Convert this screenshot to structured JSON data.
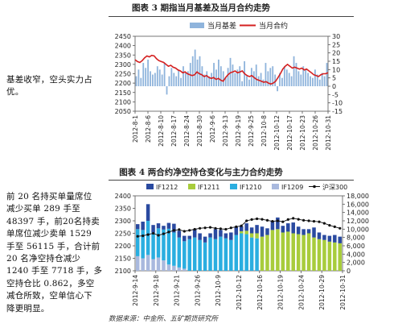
{
  "body_text": {
    "lines_top": [
      "基差收窄，空头实力占",
      "优。"
    ],
    "lines_bottom": [
      "前 20 名持买单量席位",
      "减少买单 289 手至",
      "48397 手，前20名持卖",
      "单席位减少卖单 1529",
      "手至 56115 手，合计前",
      "20 名净空持仓减少",
      "1240 手至 7718 手，多",
      "空持仓比 0.862，多空",
      "减仓所致，空单信心下",
      "降更明显。"
    ]
  },
  "source_note": "数据来源：中金所、五矿期货研究所",
  "colors": {
    "basis_bar": "#8fb4dc",
    "contract_line": "#d42020",
    "IF1212": "#2a4aa0",
    "IF1211": "#a8cc3c",
    "IF1210": "#2aaee0",
    "IF1209": "#a9b9de",
    "hs300": "#111111"
  },
  "chart_data": [
    {
      "figure_title": "图表 3  期指当月基差及当月合约走势",
      "type": "bar+line",
      "legend": [
        "当月基差",
        "当月合约"
      ],
      "x_tick_labels": [
        "2012-8-1",
        "2012-8-6",
        "2012-8-10",
        "2012-8-17",
        "2012-8-24",
        "2012-8-30",
        "2012-9-6",
        "2012-9-13",
        "2012-9-19",
        "2012-9-25",
        "2012-10-8",
        "2012-10-12",
        "2012-10-17",
        "2012-10-23",
        "2012-10-26",
        "2012-10-31"
      ],
      "left_axis": {
        "ticks": [
          2050,
          2100,
          2150,
          2200,
          2250,
          2300,
          2350,
          2400,
          2450
        ],
        "ylim": [
          2050,
          2450
        ]
      },
      "right_axis": {
        "ticks": [
          -15,
          -10,
          -5,
          0,
          5,
          10,
          15,
          20,
          25,
          30
        ],
        "ylim": [
          -15,
          30
        ]
      },
      "series": [
        {
          "name": "当月基差",
          "axis": "right",
          "kind": "bar",
          "values": [
            6,
            10,
            5,
            14,
            11,
            16,
            9,
            7,
            8,
            12,
            10,
            7,
            14,
            -5,
            6,
            11,
            8,
            6,
            10,
            5,
            12,
            8,
            9,
            14,
            18,
            22,
            16,
            18,
            12,
            7,
            9,
            6,
            8,
            14,
            10,
            16,
            12,
            9,
            5,
            11,
            17,
            13,
            8,
            10,
            12,
            3,
            15,
            6,
            4,
            11,
            9,
            13,
            6,
            8,
            4,
            14,
            9,
            11,
            12,
            7,
            -3,
            8,
            5,
            12,
            10,
            8,
            6,
            18,
            14,
            9,
            7,
            12,
            10,
            8,
            6,
            5,
            10,
            7,
            4,
            8,
            6,
            14
          ]
        },
        {
          "name": "当月合约",
          "axis": "left",
          "kind": "line",
          "values": [
            2325,
            2315,
            2310,
            2320,
            2335,
            2345,
            2340,
            2348,
            2345,
            2330,
            2320,
            2315,
            2310,
            2300,
            2290,
            2295,
            2285,
            2280,
            2270,
            2265,
            2255,
            2260,
            2250,
            2245,
            2240,
            2245,
            2260,
            2250,
            2245,
            2235,
            2240,
            2230,
            2225,
            2230,
            2220,
            2225,
            2215,
            2210,
            2230,
            2245,
            2255,
            2260,
            2265,
            2255,
            2260,
            2265,
            2250,
            2240,
            2235,
            2240,
            2230,
            2220,
            2215,
            2210,
            2205,
            2208,
            2200,
            2195,
            2200,
            2210,
            2230,
            2250,
            2275,
            2290,
            2300,
            2290,
            2280,
            2285,
            2280,
            2275,
            2280,
            2270,
            2275,
            2265,
            2255,
            2245,
            2240,
            2235,
            2245,
            2250,
            2250,
            2255
          ]
        }
      ]
    },
    {
      "figure_title": "图表 4  两合约净空持仓变化与主力合约走势",
      "type": "stacked-bar+line",
      "legend": [
        "IF1212",
        "IF1211",
        "IF1210",
        "IF1209",
        "沪深300"
      ],
      "x_tick_labels": [
        "2012-9-14",
        "2012-9-18",
        "2012-9-21",
        "2012-9-26",
        "2012-10-9",
        "2012-10-12",
        "2012-10-16",
        "2012-10-19",
        "2012-10-24",
        "2012-10-29",
        "2012-10-31"
      ],
      "left_axis": {
        "ticks": [
          2100,
          2150,
          2200,
          2250,
          2300,
          2350,
          2400
        ],
        "ylim": [
          2100,
          2400
        ]
      },
      "right_axis": {
        "ticks": [
          0,
          2000,
          4000,
          6000,
          8000,
          10000,
          12000,
          14000,
          16000,
          18000
        ],
        "ylim": [
          0,
          18000
        ]
      },
      "series": [
        {
          "name": "IF1209",
          "axis": "right",
          "kind": "bar",
          "values": [
            3500,
            3000,
            3800,
            2800,
            3200,
            2500,
            1500,
            1200,
            800,
            500,
            0,
            0,
            0,
            0,
            0,
            0,
            0,
            0,
            0,
            0,
            0,
            0,
            0,
            0,
            0,
            0,
            0,
            0,
            0,
            0,
            0,
            0,
            0,
            0,
            0,
            0,
            0,
            0,
            0,
            0
          ]
        },
        {
          "name": "IF1210",
          "axis": "right",
          "kind": "bar",
          "values": [
            6500,
            6800,
            8200,
            6400,
            7000,
            7400,
            8600,
            8000,
            7200,
            6600,
            7600,
            8000,
            7400,
            6800,
            8000,
            7600,
            8200,
            7800,
            7400,
            8600,
            9000,
            8800,
            8000,
            7800,
            0,
            0,
            0,
            0,
            0,
            0,
            0,
            0,
            0,
            0,
            0,
            0,
            0,
            0,
            0,
            0
          ]
        },
        {
          "name": "IF1211",
          "axis": "right",
          "kind": "bar",
          "values": [
            0,
            0,
            0,
            0,
            0,
            0,
            0,
            0,
            0,
            0,
            0,
            0,
            0,
            0,
            0,
            0,
            0,
            0,
            0,
            0,
            500,
            800,
            1000,
            1200,
            8200,
            8600,
            9800,
            10000,
            9200,
            9400,
            9000,
            8800,
            8600,
            9000,
            8000,
            7600,
            7400,
            7000,
            6800,
            6600
          ]
        },
        {
          "name": "IF1212",
          "axis": "right",
          "kind": "bar",
          "values": [
            1200,
            2000,
            4000,
            1800,
            1200,
            900,
            1400,
            2100,
            1600,
            1300,
            800,
            2000,
            1600,
            1400,
            1000,
            2400,
            1600,
            1200,
            1800,
            2000,
            1200,
            1800,
            1400,
            2000,
            2400,
            1600,
            2200,
            2800,
            1600,
            2000,
            2600,
            1800,
            1400,
            1000,
            2400,
            1600,
            1200,
            1400,
            1800,
            1600
          ]
        },
        {
          "name": "沪深300",
          "axis": "left",
          "kind": "line",
          "values": [
            2238,
            2240,
            2245,
            2250,
            2242,
            2248,
            2255,
            2262,
            2265,
            2258,
            2262,
            2266,
            2270,
            2272,
            2274,
            2270,
            2268,
            2266,
            2272,
            2276,
            2280,
            2300,
            2305,
            2308,
            2306,
            2302,
            2298,
            2300,
            2296,
            2305,
            2310,
            2306,
            2302,
            2300,
            2298,
            2296,
            2290,
            2282,
            2276,
            2270
          ]
        }
      ]
    }
  ]
}
